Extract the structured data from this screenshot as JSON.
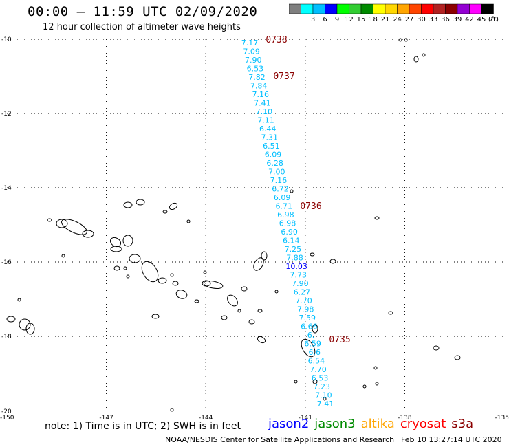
{
  "header": {
    "title": "00:00 – 11:59 UTC 02/09/2020",
    "subtitle": "12 hour collection of altimeter wave heights"
  },
  "color_scale": {
    "unit": "(ft)",
    "bins": [
      {
        "label": "",
        "color": "#7f7f7f"
      },
      {
        "label": "3",
        "color": "#00ffff"
      },
      {
        "label": "6",
        "color": "#00bfff"
      },
      {
        "label": "9",
        "color": "#0000ff"
      },
      {
        "label": "12",
        "color": "#00ff00"
      },
      {
        "label": "15",
        "color": "#32cd32"
      },
      {
        "label": "18",
        "color": "#008b00"
      },
      {
        "label": "21",
        "color": "#ffff00"
      },
      {
        "label": "24",
        "color": "#ffd700"
      },
      {
        "label": "27",
        "color": "#ffa500"
      },
      {
        "label": "30",
        "color": "#ff4500"
      },
      {
        "label": "33",
        "color": "#ff0000"
      },
      {
        "label": "36",
        "color": "#b22222"
      },
      {
        "label": "39",
        "color": "#8b0000"
      },
      {
        "label": "42",
        "color": "#9400d3"
      },
      {
        "label": "45",
        "color": "#ff00ff"
      },
      {
        "label": "70",
        "color": "#000000"
      }
    ]
  },
  "map": {
    "lat_labels": [
      "-10",
      "-12",
      "-14",
      "-16",
      "-18",
      "-20"
    ],
    "lon_labels": [
      "-150",
      "-147",
      "-144",
      "-141",
      "-138",
      "-135"
    ],
    "time_labels": [
      "0738",
      "0737",
      "0736",
      "0735"
    ],
    "time_label_color": "#8b0000",
    "wave_heights": [
      "7.17",
      "7.09",
      "7.90",
      "6.53",
      "7.82",
      "7.84",
      "7.16",
      "7.41",
      "7.10",
      "7.11",
      "6.44",
      "7.31",
      "6.51",
      "6.09",
      "6.28",
      "7.00",
      "7.16",
      "6.72",
      "6.09",
      "6.71",
      "6.98",
      "6.98",
      "6.90",
      "6.14",
      "7.25",
      "7.88",
      "10.03",
      "7.73",
      "7.90",
      "6.27",
      "7.70",
      "7.98",
      "7.59",
      "6.66",
      "6.",
      "6.59",
      "6.6",
      "6.54",
      "7.70",
      "6.53",
      "7.23",
      "7.10",
      "7.41"
    ],
    "wave_height_color": "#00bfff",
    "highlight_color": "#0000ff"
  },
  "footer": {
    "note": "note: 1) Time is in UTC; 2) SWH is in feet",
    "satellites": [
      {
        "name": "jason2",
        "color": "#0000ff"
      },
      {
        "name": "jason3",
        "color": "#008b00"
      },
      {
        "name": "altika",
        "color": "#ffa500"
      },
      {
        "name": "cryosat",
        "color": "#ff0000"
      },
      {
        "name": "s3a",
        "color": "#8b0000"
      }
    ],
    "credit": "NOAA/NESDIS Center for Satellite Applications and Research",
    "timestamp": "Feb 10 13:27:14 UTC 2020"
  }
}
